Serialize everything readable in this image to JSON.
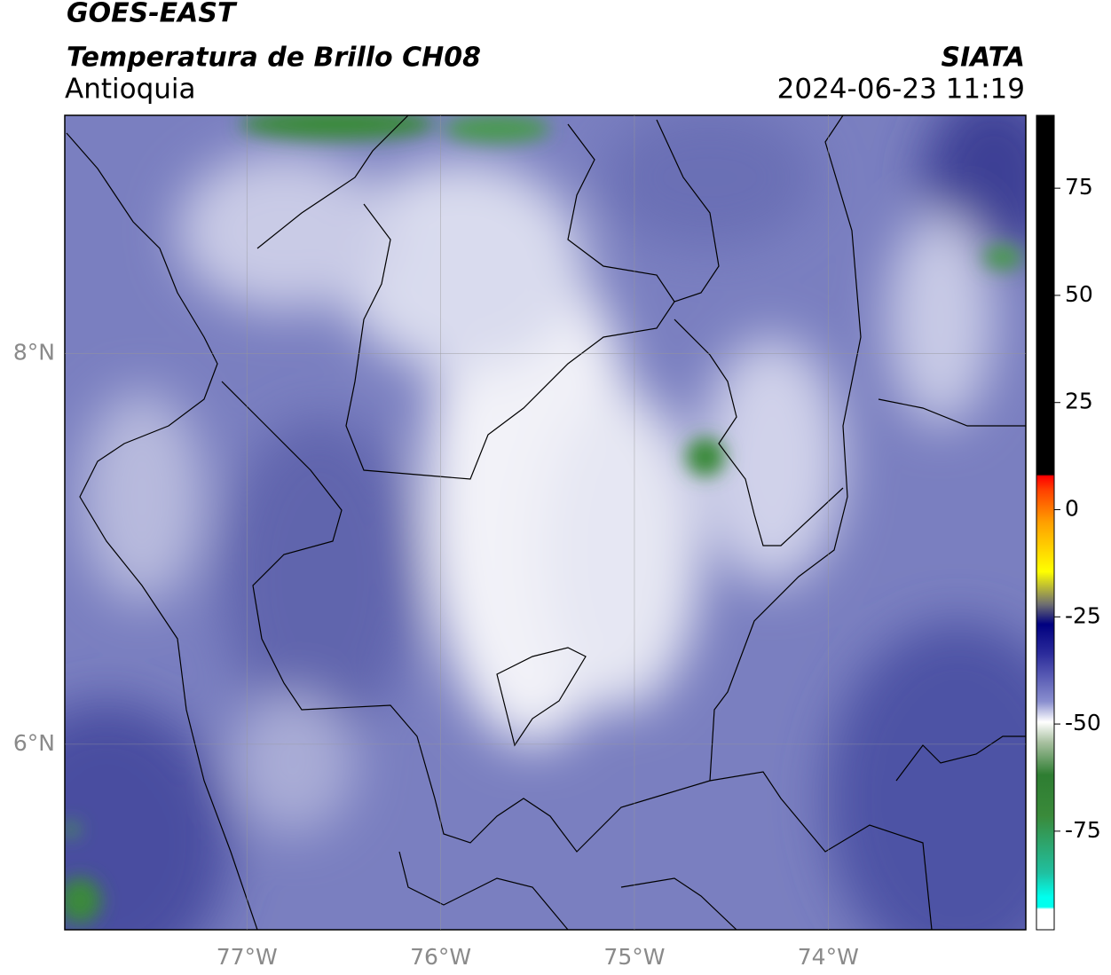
{
  "header": {
    "title": "GOES-EAST",
    "subtitle": "Temperatura de Brillo CH08",
    "region": "Antioquia",
    "source": "SIATA",
    "datetime": "2024-06-23 11:19"
  },
  "map": {
    "xlim": [
      -77.94,
      -72.98
    ],
    "ylim": [
      5.05,
      9.22
    ],
    "xticks": [
      {
        "value": -77,
        "label": "77°W"
      },
      {
        "value": -76,
        "label": "76°W"
      },
      {
        "value": -75,
        "label": "75°W"
      },
      {
        "value": -74,
        "label": "74°W"
      }
    ],
    "yticks": [
      {
        "value": 8,
        "label": "8°N"
      },
      {
        "value": 6,
        "label": "6°N"
      }
    ],
    "grid": true
  },
  "colorbar": {
    "lim": [
      -98,
      92
    ],
    "ticks": [
      75,
      50,
      25,
      0,
      -25,
      -50,
      -75
    ]
  }
}
